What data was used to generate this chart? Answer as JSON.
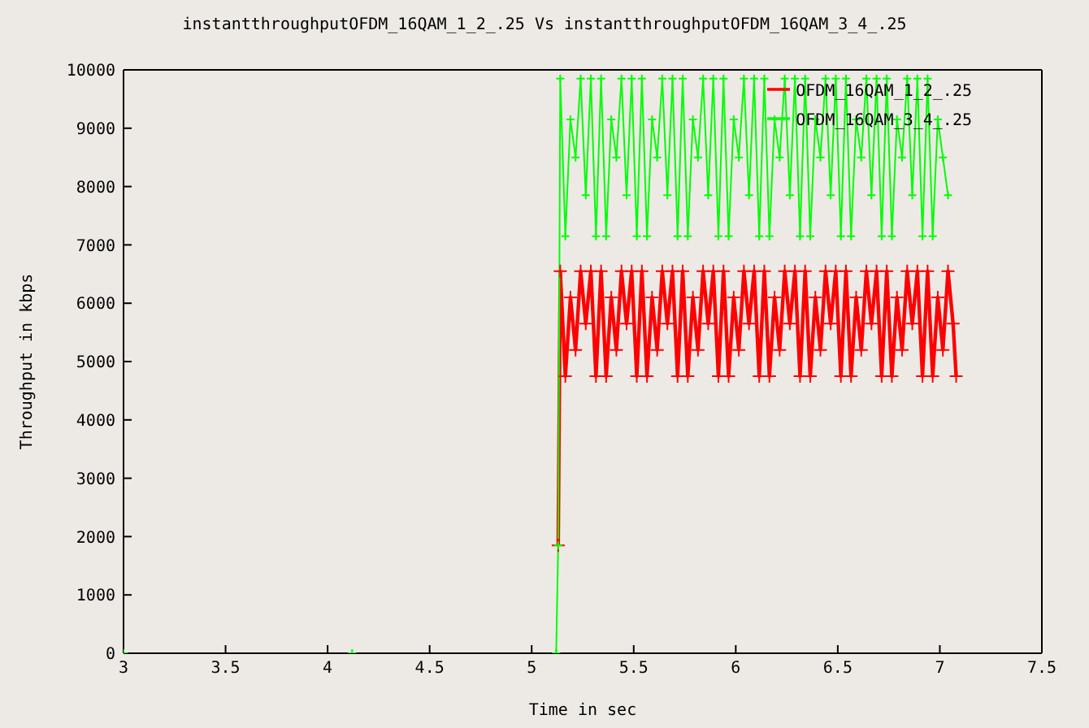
{
  "chart_data": {
    "type": "line",
    "title": "instantthroughputOFDM_16QAM_1_2_.25 Vs instantthroughputOFDM_16QAM_3_4_.25",
    "xlabel": "Time in sec",
    "ylabel": "Throughput in kbps",
    "xlim": [
      3,
      7.5
    ],
    "xticks": [
      3,
      3.5,
      4,
      4.5,
      5,
      5.5,
      6,
      6.5,
      7,
      7.5
    ],
    "ylim": [
      0,
      10000
    ],
    "yticks": [
      0,
      1000,
      2000,
      3000,
      4000,
      5000,
      6000,
      7000,
      8000,
      9000,
      10000
    ],
    "legend": "top right",
    "marker": "cross",
    "line_style": "solid",
    "series": [
      {
        "name": "OFDM_16QAM_1_2_.25",
        "color": "#ff0000",
        "x": [
          5.13,
          5.14,
          5.165,
          5.19,
          5.215,
          5.24,
          5.265,
          5.29,
          5.315,
          5.34,
          5.365,
          5.39,
          5.415,
          5.44,
          5.465,
          5.49,
          5.515,
          5.54,
          5.565,
          5.59,
          5.615,
          5.64,
          5.665,
          5.69,
          5.715,
          5.74,
          5.765,
          5.79,
          5.815,
          5.84,
          5.865,
          5.89,
          5.915,
          5.94,
          5.965,
          5.99,
          6.015,
          6.04,
          6.065,
          6.09,
          6.115,
          6.14,
          6.165,
          6.19,
          6.215,
          6.24,
          6.265,
          6.29,
          6.315,
          6.34,
          6.365,
          6.39,
          6.415,
          6.44,
          6.465,
          6.49,
          6.515,
          6.54,
          6.565,
          6.59,
          6.615,
          6.64,
          6.665,
          6.69,
          6.715,
          6.74,
          6.765,
          6.79,
          6.815,
          6.84,
          6.865,
          6.89,
          6.915,
          6.94,
          6.965,
          6.99,
          7.015,
          7.04,
          7.065,
          7.08
        ],
        "values": [
          1850,
          6550,
          4750,
          6100,
          5200,
          6550,
          5650,
          6550,
          4750,
          6550,
          4750,
          6100,
          5200,
          6550,
          5650,
          6550,
          4750,
          6550,
          4750,
          6100,
          5200,
          6550,
          5650,
          6550,
          4750,
          6550,
          4750,
          6100,
          5200,
          6550,
          5650,
          6550,
          4750,
          6550,
          4750,
          6100,
          5200,
          6550,
          5650,
          6550,
          4750,
          6550,
          4750,
          6100,
          5200,
          6550,
          5650,
          6550,
          4750,
          6550,
          4750,
          6100,
          5200,
          6550,
          5650,
          6550,
          4750,
          6550,
          4750,
          6100,
          5200,
          6550,
          5650,
          6550,
          4750,
          6550,
          4750,
          6100,
          5200,
          6550,
          5650,
          6550,
          4750,
          6550,
          4750,
          6100,
          5200,
          6550,
          5650,
          4750
        ]
      },
      {
        "name": "OFDM_16QAM_3_4_.25",
        "color": "#00ff00",
        "x": [
          3,
          4.12,
          5.12,
          5.13,
          5.14,
          5.165,
          5.19,
          5.215,
          5.24,
          5.265,
          5.29,
          5.315,
          5.34,
          5.365,
          5.39,
          5.415,
          5.44,
          5.465,
          5.49,
          5.515,
          5.54,
          5.565,
          5.59,
          5.615,
          5.64,
          5.665,
          5.69,
          5.715,
          5.74,
          5.765,
          5.79,
          5.815,
          5.84,
          5.865,
          5.89,
          5.915,
          5.94,
          5.965,
          5.99,
          6.015,
          6.04,
          6.065,
          6.09,
          6.115,
          6.14,
          6.165,
          6.19,
          6.215,
          6.24,
          6.265,
          6.29,
          6.315,
          6.34,
          6.365,
          6.39,
          6.415,
          6.44,
          6.465,
          6.49,
          6.515,
          6.54,
          6.565,
          6.59,
          6.615,
          6.64,
          6.665,
          6.69,
          6.715,
          6.74,
          6.765,
          6.79,
          6.815,
          6.84,
          6.865,
          6.89,
          6.915,
          6.94,
          6.965,
          6.99,
          7.015,
          7.04
        ],
        "values": [
          0,
          0,
          0,
          1850,
          9850,
          7150,
          9150,
          8500,
          9850,
          7850,
          9850,
          7150,
          9850,
          7150,
          9150,
          8500,
          9850,
          7850,
          9850,
          7150,
          9850,
          7150,
          9150,
          8500,
          9850,
          7850,
          9850,
          7150,
          9850,
          7150,
          9150,
          8500,
          9850,
          7850,
          9850,
          7150,
          9850,
          7150,
          9150,
          8500,
          9850,
          7850,
          9850,
          7150,
          9850,
          7150,
          9150,
          8500,
          9850,
          7850,
          9850,
          7150,
          9850,
          7150,
          9150,
          8500,
          9850,
          7850,
          9850,
          7150,
          9850,
          7150,
          9150,
          8500,
          9850,
          7850,
          9850,
          7150,
          9850,
          7150,
          9150,
          8500,
          9850,
          7850,
          9850,
          7150,
          9850,
          7150,
          9150,
          8500,
          7850
        ]
      }
    ]
  }
}
